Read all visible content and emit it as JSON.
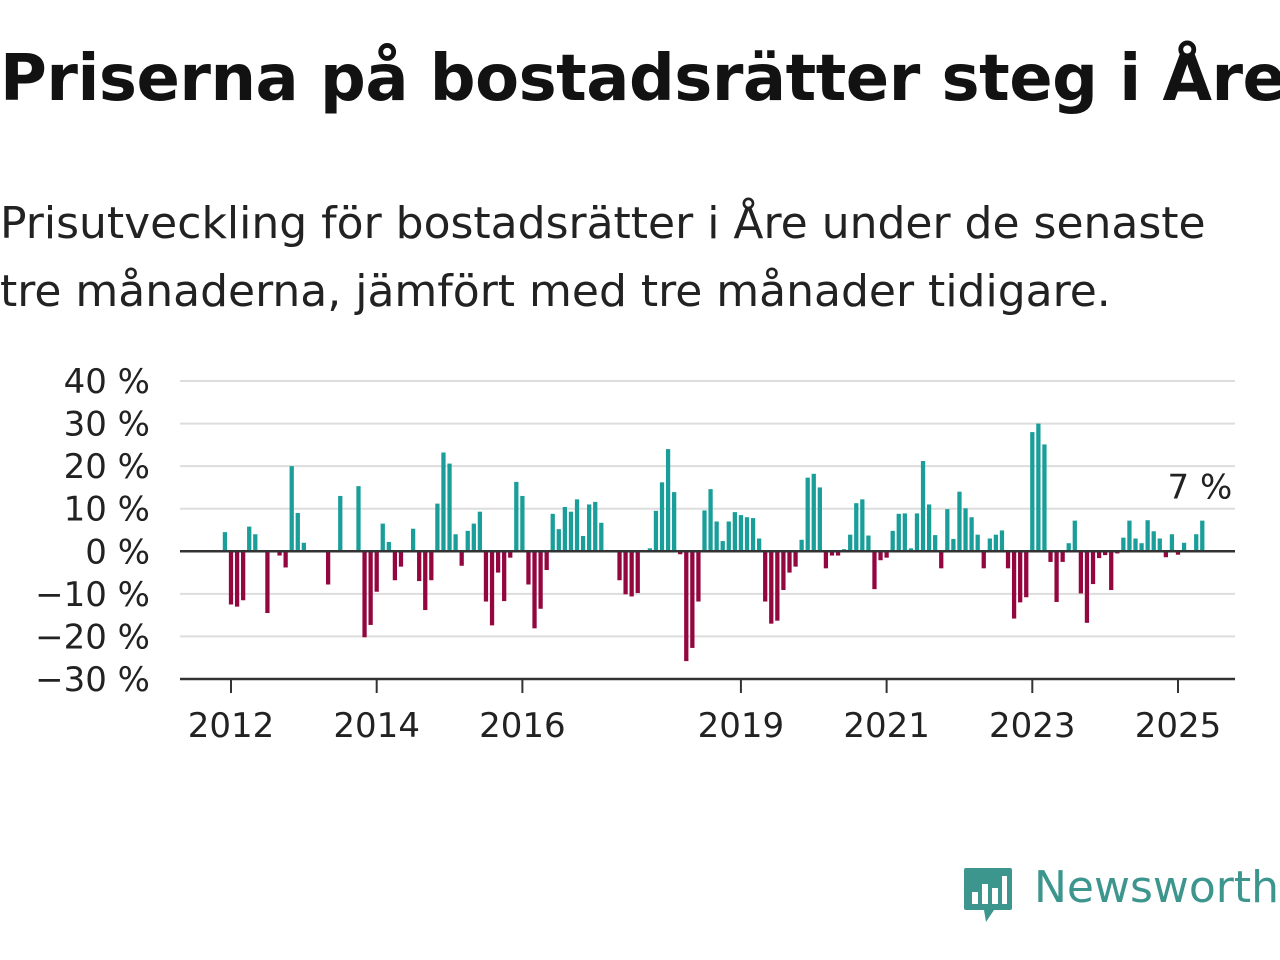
{
  "header": {
    "title": "Priserna på bostadsrätter steg i Åre",
    "subtitle": "Prisutveckling för bostadsrätter i Åre under de senaste tre månaderna, jämfört med tre månader tidigare."
  },
  "brand": {
    "name": "Newsworthy",
    "icon": "newsworthy-chart-bubble-icon",
    "color": "#3d968e"
  },
  "colors": {
    "positive": "#1a9e9a",
    "negative": "#93063f",
    "grid": "#dddddd",
    "axis": "#333333"
  },
  "chart_data": {
    "type": "bar",
    "title": "Priserna på bostadsrätter steg i Åre",
    "subtitle": "Prisutveckling för bostadsrätter i Åre under de senaste tre månaderna, jämfört med tre månader tidigare.",
    "xlabel": "",
    "ylabel": "",
    "ylim": [
      -30,
      40
    ],
    "yticks": [
      -30,
      -20,
      -10,
      0,
      10,
      20,
      30,
      40
    ],
    "ytick_labels": [
      "−30 %",
      "−20 %",
      "−10 %",
      "0 %",
      "10 %",
      "20 %",
      "30 %",
      "40 %"
    ],
    "xticks": [
      {
        "label": "2012",
        "x": "2012-01"
      },
      {
        "label": "2014",
        "x": "2014-01"
      },
      {
        "label": "2016",
        "x": "2016-01"
      },
      {
        "label": "2019",
        "x": "2019-01"
      },
      {
        "label": "2021",
        "x": "2021-01"
      },
      {
        "label": "2023",
        "x": "2023-01"
      },
      {
        "label": "2025",
        "x": "2025-01"
      }
    ],
    "x_start": "2011-05",
    "last_value_label": "7 %",
    "grid": true,
    "legend": "none",
    "series": [
      {
        "values": [
          null,
          null,
          null,
          null,
          null,
          null,
          null,
          4.5,
          -12.5,
          -13,
          -11.5,
          5.8,
          4,
          null,
          -14.5,
          null,
          -1,
          -3.8,
          20,
          9,
          2,
          null,
          null,
          null,
          -7.8,
          null,
          13,
          null,
          null,
          15.3,
          -20.2,
          -17.3,
          -9.5,
          6.5,
          2.2,
          -6.8,
          -3.6,
          null,
          5.3,
          -7,
          -13.8,
          -6.8,
          11.2,
          23.2,
          20.6,
          4,
          -3.4,
          4.8,
          6.5,
          9.3,
          -11.8,
          -17.4,
          -5,
          -11.7,
          -1.5,
          16.3,
          13,
          -7.8,
          -18.1,
          -13.5,
          -4.4,
          8.8,
          5.2,
          10.4,
          9.3,
          12.2,
          3.6,
          11,
          11.6,
          6.7,
          null,
          null,
          -6.8,
          -10.1,
          -10.6,
          -9.8,
          null,
          0.7,
          9.5,
          16.2,
          24,
          13.9,
          -0.7,
          -25.8,
          -22.7,
          -11.8,
          9.6,
          14.6,
          7,
          2.4,
          7,
          9.2,
          8.5,
          8,
          7.8,
          3,
          -11.8,
          -17,
          -16.3,
          -9.1,
          -5,
          -3.6,
          2.7,
          17.3,
          18.2,
          15,
          -4,
          -1,
          -1,
          0.5,
          3.9,
          11.3,
          12.2,
          3.7,
          -8.9,
          -2.1,
          -1.5,
          4.8,
          8.8,
          8.9,
          0.7,
          8.9,
          21.2,
          11,
          3.8,
          -4,
          9.9,
          2.9,
          14,
          10.1,
          8,
          3.9,
          -4,
          3,
          3.9,
          4.9,
          -4,
          -15.8,
          -12,
          -10.8,
          28,
          30,
          25.1,
          -2.5,
          -11.9,
          -2.5,
          1.9,
          7.2,
          -9.9,
          -16.8,
          -7.7,
          -1.6,
          -0.9,
          -9.1,
          -0.5,
          3.2,
          7.2,
          3,
          1.9,
          7.3,
          4.7,
          3,
          -1.4,
          4,
          -0.8,
          2,
          null,
          4,
          7.2
        ]
      }
    ]
  }
}
